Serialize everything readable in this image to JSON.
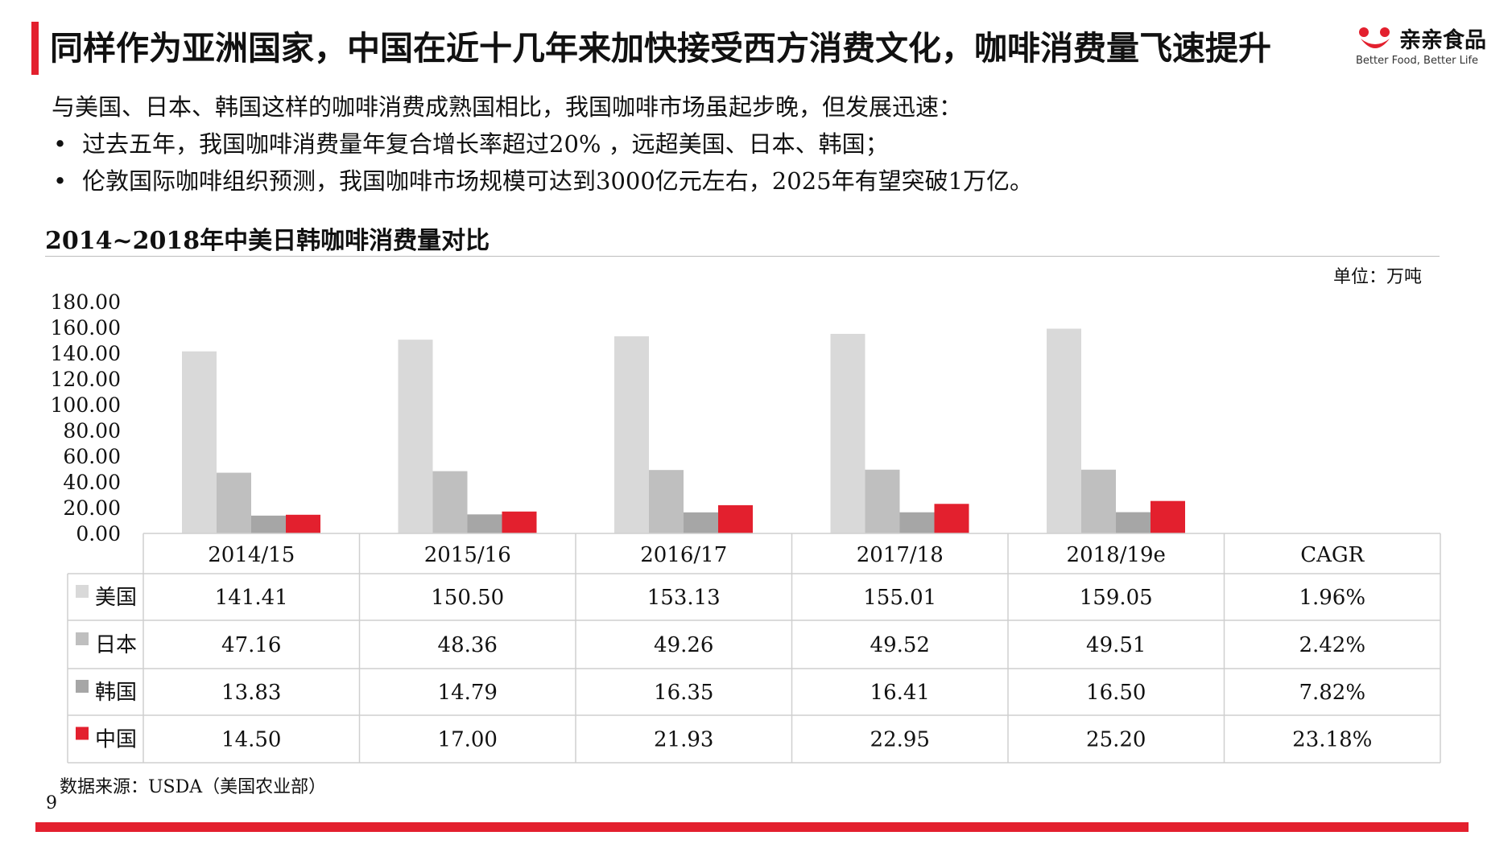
{
  "header": {
    "title": "同样作为亚洲国家，中国在近十几年来加快接受西方消费文化，咖啡消费量飞速提升",
    "logo_name": "亲亲食品",
    "logo_slogan": "Better Food, Better Life",
    "logo_icon": "smile-logo-icon",
    "accent_color": "#e3202e"
  },
  "intro": "与美国、日本、韩国这样的咖啡消费成熟国相比，我国咖啡市场虽起步晚，但发展迅速：",
  "bullets": [
    "过去五年，我国咖啡消费量年复合增长率超过20% ，远超美国、日本、韩国；",
    "伦敦国际咖啡组织预测，我国咖啡市场规模可达到3000亿元左右，2025年有望突破1万亿。"
  ],
  "bullet_symbol": "•",
  "chart_data": {
    "type": "bar",
    "title": "2014~2018年中美日韩咖啡消费量对比",
    "unit": "单位：万吨",
    "categories": [
      "2014/15",
      "2015/16",
      "2016/17",
      "2017/18",
      "2018/19e"
    ],
    "extra_column": "CAGR",
    "ylim": [
      0,
      180
    ],
    "yticks": [
      "180.00",
      "160.00",
      "140.00",
      "120.00",
      "100.00",
      "80.00",
      "60.00",
      "40.00",
      "20.00",
      "0.00"
    ],
    "ytick_values": [
      180,
      160,
      140,
      120,
      100,
      80,
      60,
      40,
      20,
      0
    ],
    "series": [
      {
        "name": "美国",
        "color": "#d9d9d9",
        "values": [
          141.41,
          150.5,
          153.13,
          155.01,
          159.05
        ],
        "labels": [
          "141.41",
          "150.50",
          "153.13",
          "155.01",
          "159.05"
        ],
        "cagr": "1.96%"
      },
      {
        "name": "日本",
        "color": "#bfbfbf",
        "values": [
          47.16,
          48.36,
          49.26,
          49.52,
          49.51
        ],
        "labels": [
          "47.16",
          "48.36",
          "49.26",
          "49.52",
          "49.51"
        ],
        "cagr": "2.42%"
      },
      {
        "name": "韩国",
        "color": "#a6a6a6",
        "values": [
          13.83,
          14.79,
          16.35,
          16.41,
          16.5
        ],
        "labels": [
          "13.83",
          "14.79",
          "16.35",
          "16.41",
          "16.50"
        ],
        "cagr": "7.82%"
      },
      {
        "name": "中国",
        "color": "#e3202e",
        "values": [
          14.5,
          17.0,
          21.93,
          22.95,
          25.2
        ],
        "labels": [
          "14.50",
          "17.00",
          "21.93",
          "22.95",
          "25.20"
        ],
        "cagr": "23.18%"
      }
    ],
    "legend": "data-table",
    "grid": false
  },
  "source": "数据来源：USDA（美国农业部）",
  "page_number": "9"
}
